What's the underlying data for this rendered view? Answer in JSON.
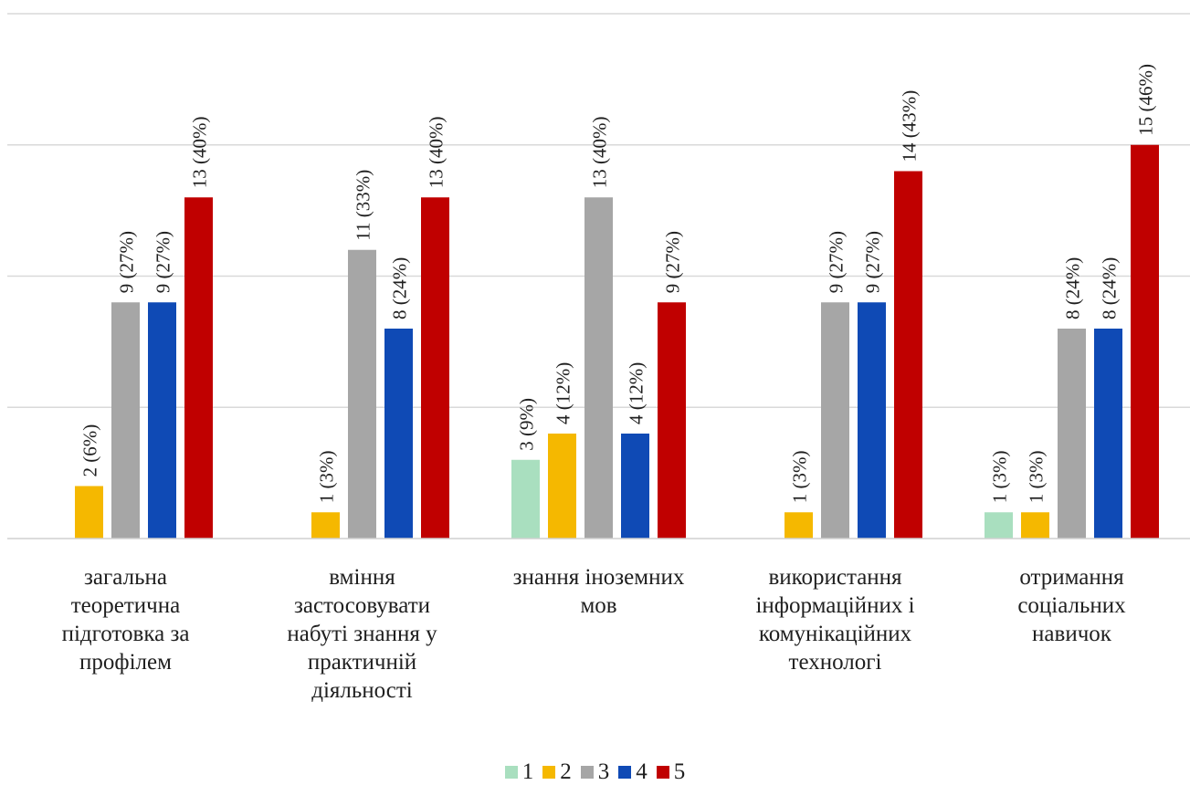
{
  "chart_data": {
    "type": "bar",
    "categories": [
      "загальна теоретична підготовка за профілем",
      "вміння застосовувати набуті знання у практичній діяльності",
      "знання іноземних мов",
      "використання інформаційних і комунікаційних технологі",
      "отримання соціальних навичок"
    ],
    "category_lines": [
      [
        "загальна",
        "теоретична",
        "підготовка за",
        "профілем"
      ],
      [
        "вміння",
        "застосовувати",
        "набуті знання у",
        "практичній",
        "діяльності"
      ],
      [
        "знання іноземних",
        "мов"
      ],
      [
        "використання",
        "інформаційних і",
        "комунікаційних",
        "технологі"
      ],
      [
        "отримання",
        "соціальних",
        "навичок"
      ]
    ],
    "series": [
      {
        "name": "1",
        "color": "#a9dfbf",
        "values": [
          0,
          0,
          3,
          0,
          1
        ],
        "labels": [
          "",
          "",
          "3 (9%)",
          "",
          "1 (3%)"
        ]
      },
      {
        "name": "2",
        "color": "#f5b800",
        "values": [
          2,
          1,
          4,
          1,
          1
        ],
        "labels": [
          "2 (6%)",
          "1 (3%)",
          "4 (12%)",
          "1 (3%)",
          "1 (3%)"
        ]
      },
      {
        "name": "3",
        "color": "#a6a6a6",
        "values": [
          9,
          11,
          13,
          9,
          8
        ],
        "labels": [
          "9 (27%)",
          "11 (33%)",
          "13 (40%)",
          "9 (27%)",
          "8 (24%)"
        ]
      },
      {
        "name": "4",
        "color": "#0f4ab5",
        "values": [
          9,
          8,
          4,
          9,
          8
        ],
        "labels": [
          "9 (27%)",
          "8 (24%)",
          "4 (12%)",
          "9 (27%)",
          "8 (24%)"
        ]
      },
      {
        "name": "5",
        "color": "#c00000",
        "values": [
          13,
          13,
          9,
          14,
          15
        ],
        "labels": [
          "13 (40%)",
          "13 (40%)",
          "9 (27%)",
          "14 (43%)",
          "15 (46%)"
        ]
      }
    ],
    "ylim": [
      0,
      20
    ],
    "y_gridlines": [
      5,
      10,
      15,
      20
    ],
    "grid": true,
    "legend_position": "bottom",
    "title": "",
    "xlabel": "",
    "ylabel": ""
  }
}
